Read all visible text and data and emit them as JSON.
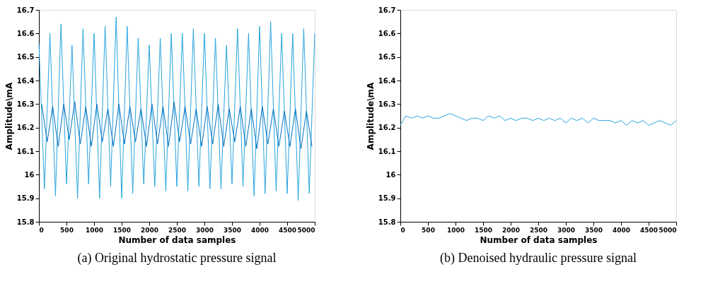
{
  "chart_data": [
    {
      "type": "line",
      "title": "(a) Original hydrostatic pressure signal",
      "xlabel": "Number of data samples",
      "ylabel": "Amplitude\\mA",
      "xlim": [
        0,
        5000
      ],
      "xticks": [
        0,
        500,
        1000,
        1500,
        2000,
        2500,
        3000,
        3500,
        4000,
        4500,
        5000
      ],
      "ylim": [
        15.8,
        16.7
      ],
      "yticks": [
        15.8,
        15.9,
        16,
        16.1,
        16.2,
        16.3,
        16.4,
        16.5,
        16.6,
        16.7
      ],
      "grid": false,
      "legend": false,
      "series": [
        {
          "color": "#29a3dd",
          "x": [
            0,
            100,
            200,
            300,
            400,
            500,
            600,
            700,
            800,
            900,
            1000,
            1100,
            1200,
            1300,
            1400,
            1500,
            1600,
            1700,
            1800,
            1900,
            2000,
            2100,
            2200,
            2300,
            2400,
            2500,
            2600,
            2700,
            2800,
            2900,
            3000,
            3100,
            3200,
            3300,
            3400,
            3500,
            3600,
            3700,
            3800,
            3900,
            4000,
            4100,
            4200,
            4300,
            4400,
            4500,
            4600,
            4700,
            4800,
            4900,
            5000
          ],
          "values": [
            16.56,
            15.94,
            16.6,
            15.91,
            16.64,
            15.96,
            16.55,
            15.9,
            16.62,
            15.96,
            16.6,
            15.9,
            16.63,
            15.95,
            16.67,
            15.9,
            16.63,
            15.92,
            16.58,
            15.96,
            16.55,
            15.95,
            16.58,
            15.93,
            16.6,
            15.95,
            16.6,
            15.93,
            16.62,
            15.95,
            16.6,
            15.94,
            16.58,
            15.94,
            16.55,
            15.96,
            16.62,
            15.95,
            16.6,
            15.91,
            16.63,
            15.92,
            16.65,
            15.93,
            16.6,
            15.92,
            16.6,
            15.89,
            16.62,
            15.92,
            16.6
          ]
        },
        {
          "color": "#0070c0",
          "x": [
            50,
            150,
            250,
            350,
            450,
            550,
            650,
            750,
            850,
            950,
            1050,
            1150,
            1250,
            1350,
            1450,
            1550,
            1650,
            1750,
            1850,
            1950,
            2050,
            2150,
            2250,
            2350,
            2450,
            2550,
            2650,
            2750,
            2850,
            2950,
            3050,
            3150,
            3250,
            3350,
            3450,
            3550,
            3650,
            3750,
            3850,
            3950,
            4050,
            4150,
            4250,
            4350,
            4450,
            4550,
            4650,
            4750,
            4850,
            4950
          ],
          "values": [
            16.3,
            16.14,
            16.29,
            16.12,
            16.3,
            16.15,
            16.31,
            16.13,
            16.29,
            16.12,
            16.3,
            16.14,
            16.28,
            16.12,
            16.3,
            16.13,
            16.29,
            16.14,
            16.28,
            16.12,
            16.3,
            16.13,
            16.29,
            16.12,
            16.31,
            16.14,
            16.29,
            16.13,
            16.28,
            16.12,
            16.29,
            16.13,
            16.3,
            16.12,
            16.28,
            16.14,
            16.29,
            16.12,
            16.28,
            16.11,
            16.29,
            16.13,
            16.28,
            16.12,
            16.27,
            16.12,
            16.28,
            16.11,
            16.27,
            16.12
          ]
        }
      ]
    },
    {
      "type": "line",
      "title": "(b) Denoised hydraulic pressure signal",
      "xlabel": "Number of data samples",
      "ylabel": "Amplitude\\mA",
      "xlim": [
        0,
        5000
      ],
      "xticks": [
        0,
        500,
        1000,
        1500,
        2000,
        2500,
        3000,
        3500,
        4000,
        4500,
        5000
      ],
      "ylim": [
        15.8,
        16.7
      ],
      "yticks": [
        15.8,
        15.9,
        16,
        16.1,
        16.2,
        16.3,
        16.4,
        16.5,
        16.6,
        16.7
      ],
      "grid": false,
      "legend": false,
      "series": [
        {
          "color": "#29a3dd",
          "x": [
            0,
            100,
            200,
            300,
            400,
            500,
            600,
            700,
            800,
            900,
            1000,
            1100,
            1200,
            1300,
            1400,
            1500,
            1600,
            1700,
            1800,
            1900,
            2000,
            2100,
            2200,
            2300,
            2400,
            2500,
            2600,
            2700,
            2800,
            2900,
            3000,
            3100,
            3200,
            3300,
            3400,
            3500,
            3600,
            3700,
            3800,
            3900,
            4000,
            4100,
            4200,
            4300,
            4400,
            4500,
            4600,
            4700,
            4800,
            4900,
            5000
          ],
          "values": [
            16.21,
            16.25,
            16.24,
            16.25,
            16.24,
            16.25,
            16.24,
            16.24,
            16.25,
            16.26,
            16.25,
            16.24,
            16.23,
            16.24,
            16.24,
            16.23,
            16.25,
            16.24,
            16.25,
            16.23,
            16.24,
            16.23,
            16.24,
            16.24,
            16.23,
            16.24,
            16.23,
            16.24,
            16.23,
            16.24,
            16.22,
            16.24,
            16.23,
            16.24,
            16.22,
            16.24,
            16.23,
            16.23,
            16.23,
            16.22,
            16.23,
            16.21,
            16.23,
            16.22,
            16.23,
            16.21,
            16.22,
            16.23,
            16.22,
            16.21,
            16.23
          ]
        }
      ]
    }
  ]
}
